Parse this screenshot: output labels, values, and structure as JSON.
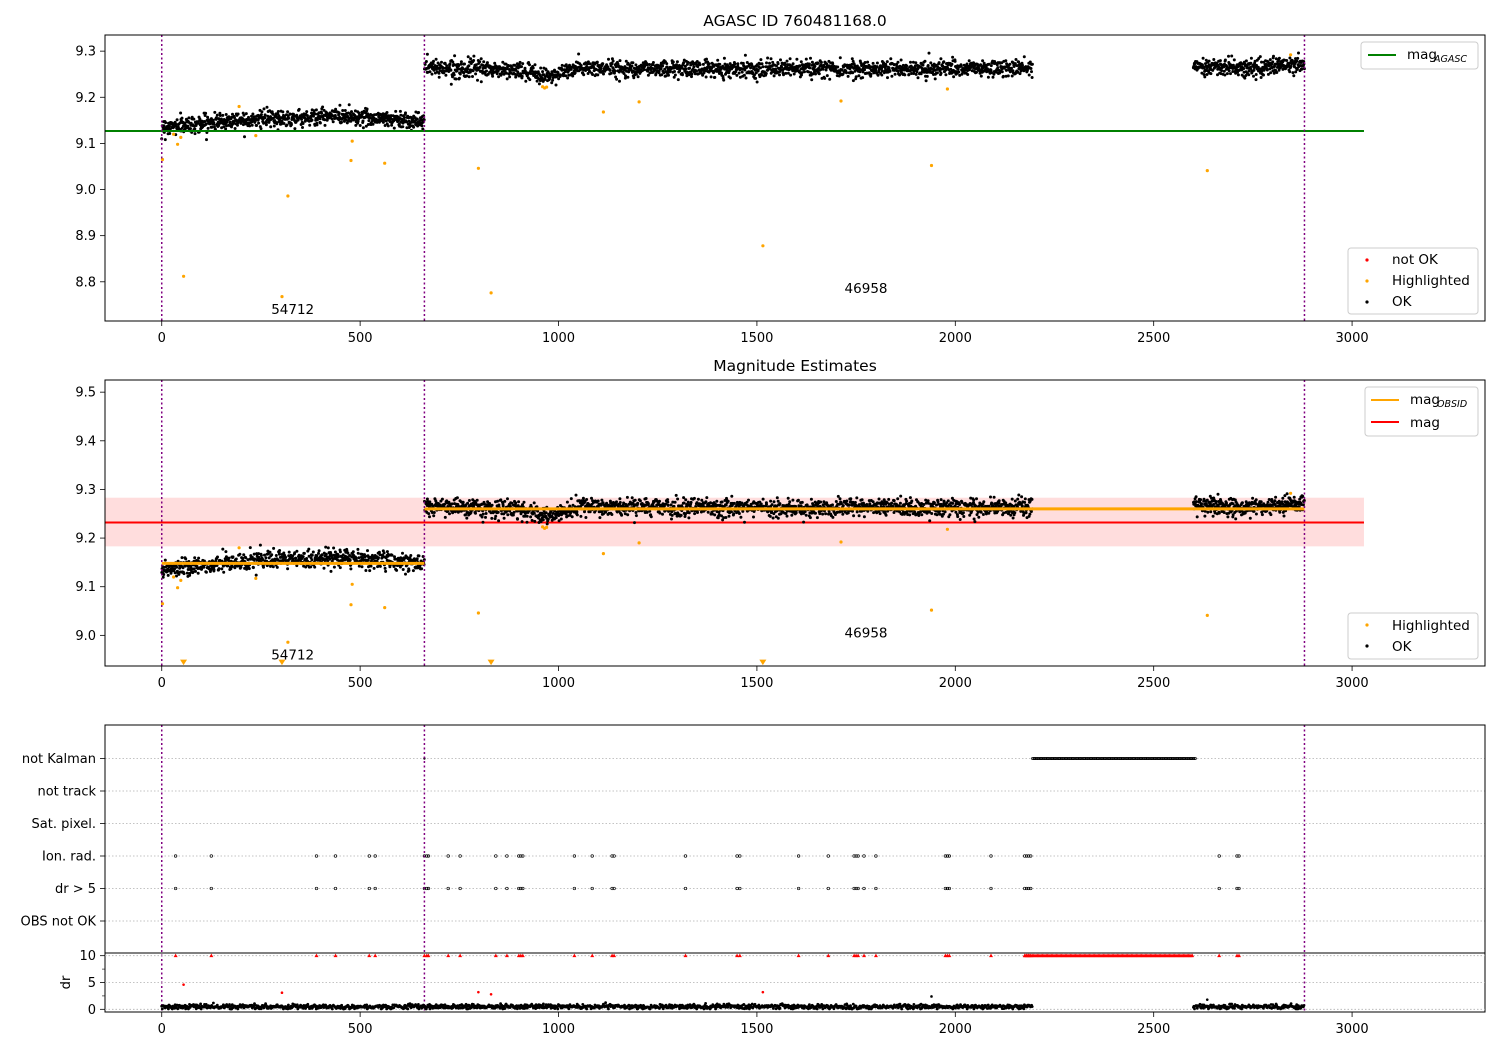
{
  "chart_data": [
    {
      "type": "scatter",
      "title": "AGASC ID 760481168.0",
      "xlim": [
        -143,
        3335
      ],
      "ylim": [
        8.715,
        9.335
      ],
      "xticks": [
        0,
        500,
        1000,
        1500,
        2000,
        2500,
        3000
      ],
      "xtick_labels": [
        "0",
        "500",
        "1000",
        "1500",
        "2000",
        "2500",
        "3000"
      ],
      "yticks": [
        8.8,
        8.9,
        9.0,
        9.1,
        9.2,
        9.3
      ],
      "ytick_labels": [
        "8.8",
        "8.9",
        "9.0",
        "9.1",
        "9.2",
        "9.3"
      ],
      "obs_boundaries": [
        0,
        662,
        2880
      ],
      "hlines": [
        {
          "name": "mag",
          "subscript": "AGASC",
          "y": 9.127,
          "x": [
            -143,
            3030
          ],
          "color": "#008000"
        }
      ],
      "series": [
        {
          "name": "OK",
          "color": "#000000",
          "segments": [
            {
              "x": [
                0,
                662
              ],
              "levels": [
                [
                  0,
                  9.135
                ],
                [
                  200,
                  9.152
                ],
                [
                  350,
                  9.155
                ],
                [
                  450,
                  9.16
                ],
                [
                  662,
                  9.148
                ]
              ],
              "noise": 0.009,
              "count": 760
            },
            {
              "x": [
                662,
                2195
              ],
              "levels": [
                [
                  662,
                  9.265
                ],
                [
                  900,
                  9.258
                ],
                [
                  970,
                  9.245
                ],
                [
                  1050,
                  9.263
                ],
                [
                  1500,
                  9.262
                ],
                [
                  2195,
                  9.262
                ]
              ],
              "noise": 0.009,
              "count": 1700
            },
            {
              "x": [
                2600,
                2880
              ],
              "levels": [
                [
                  2600,
                  9.27
                ],
                [
                  2720,
                  9.262
                ],
                [
                  2880,
                  9.272
                ]
              ],
              "noise": 0.009,
              "count": 340
            }
          ]
        },
        {
          "name": "Highlighted",
          "color": "#ffa500",
          "points": [
            [
              2,
              9.065
            ],
            [
              30,
              9.12
            ],
            [
              40,
              9.098
            ],
            [
              48,
              9.113
            ],
            [
              55,
              8.812
            ],
            [
              195,
              9.18
            ],
            [
              237,
              9.117
            ],
            [
              303,
              8.768
            ],
            [
              318,
              8.986
            ],
            [
              477,
              9.063
            ],
            [
              480,
              9.105
            ],
            [
              562,
              9.057
            ],
            [
              798,
              9.046
            ],
            [
              830,
              8.776
            ],
            [
              960,
              9.223
            ],
            [
              965,
              9.22
            ],
            [
              970,
              9.222
            ],
            [
              1113,
              9.168
            ],
            [
              1203,
              9.19
            ],
            [
              1515,
              8.878
            ],
            [
              1712,
              9.192
            ],
            [
              1940,
              9.052
            ],
            [
              1980,
              9.218
            ],
            [
              2635,
              9.041
            ],
            [
              2845,
              9.292
            ]
          ]
        },
        {
          "name": "not OK",
          "color": "#ff0000",
          "points": []
        }
      ],
      "annotations": [
        {
          "text": "54712",
          "x": 330,
          "y": 8.74
        },
        {
          "text": "46958",
          "x": 1775,
          "y": 8.785
        }
      ],
      "legends": [
        {
          "position": "upper right",
          "entries": [
            {
              "label": "mag",
              "subscript": "AGASC",
              "kind": "line",
              "color": "#008000"
            }
          ]
        },
        {
          "position": "lower right",
          "entries": [
            {
              "label": "not OK",
              "kind": "point",
              "color": "#ff0000"
            },
            {
              "label": "Highlighted",
              "kind": "point",
              "color": "#ffa500"
            },
            {
              "label": "OK",
              "kind": "point",
              "color": "#000000"
            }
          ]
        }
      ]
    },
    {
      "type": "scatter",
      "title": "Magnitude Estimates",
      "xlim": [
        -143,
        3335
      ],
      "ylim": [
        8.937,
        9.525
      ],
      "xticks": [
        0,
        500,
        1000,
        1500,
        2000,
        2500,
        3000
      ],
      "xtick_labels": [
        "0",
        "500",
        "1000",
        "1500",
        "2000",
        "2500",
        "3000"
      ],
      "yticks": [
        9.0,
        9.1,
        9.2,
        9.3,
        9.4,
        9.5
      ],
      "ytick_labels": [
        "9.0",
        "9.1",
        "9.2",
        "9.3",
        "9.4",
        "9.5"
      ],
      "obs_boundaries": [
        0,
        662,
        2880
      ],
      "band": {
        "y": [
          9.183,
          9.283
        ],
        "x": [
          -143,
          3030
        ],
        "color": "#ffdddd"
      },
      "hlines": [
        {
          "name": "mag",
          "y": 9.232,
          "x": [
            -143,
            3030
          ],
          "color": "#ff0000"
        },
        {
          "name": "mag",
          "subscript": "OBSID",
          "y": 9.148,
          "x": [
            0,
            662
          ],
          "color": "#ffa500"
        },
        {
          "name": "mag",
          "subscript": "OBSID",
          "y": 9.26,
          "x": [
            662,
            2880
          ],
          "color": "#ffa500"
        }
      ],
      "series": [
        {
          "name": "OK",
          "color": "#000000",
          "segments": [
            {
              "x": [
                0,
                662
              ],
              "levels": [
                [
                  0,
                  9.135
                ],
                [
                  200,
                  9.152
                ],
                [
                  350,
                  9.155
                ],
                [
                  450,
                  9.16
                ],
                [
                  662,
                  9.148
                ]
              ],
              "noise": 0.009,
              "count": 760
            },
            {
              "x": [
                662,
                2195
              ],
              "levels": [
                [
                  662,
                  9.265
                ],
                [
                  900,
                  9.258
                ],
                [
                  970,
                  9.245
                ],
                [
                  1050,
                  9.263
                ],
                [
                  1500,
                  9.262
                ],
                [
                  2195,
                  9.262
                ]
              ],
              "noise": 0.009,
              "count": 1700
            },
            {
              "x": [
                2600,
                2880
              ],
              "levels": [
                [
                  2600,
                  9.27
                ],
                [
                  2720,
                  9.262
                ],
                [
                  2880,
                  9.272
                ]
              ],
              "noise": 0.009,
              "count": 340
            }
          ]
        },
        {
          "name": "Highlighted",
          "color": "#ffa500",
          "points": [
            [
              2,
              9.065
            ],
            [
              30,
              9.12
            ],
            [
              40,
              9.098
            ],
            [
              48,
              9.113
            ],
            [
              195,
              9.18
            ],
            [
              237,
              9.117
            ],
            [
              318,
              8.986
            ],
            [
              477,
              9.063
            ],
            [
              480,
              9.105
            ],
            [
              562,
              9.057
            ],
            [
              798,
              9.046
            ],
            [
              960,
              9.223
            ],
            [
              965,
              9.22
            ],
            [
              970,
              9.222
            ],
            [
              1113,
              9.168
            ],
            [
              1203,
              9.19
            ],
            [
              1712,
              9.192
            ],
            [
              1940,
              9.052
            ],
            [
              1980,
              9.218
            ],
            [
              2635,
              9.041
            ],
            [
              2845,
              9.292
            ]
          ]
        },
        {
          "name": "below range",
          "color": "#ffa500",
          "marker": "triangle-down",
          "points": [
            [
              55,
              8.945
            ],
            [
              303,
              8.945
            ],
            [
              830,
              8.945
            ],
            [
              1515,
              8.945
            ]
          ]
        }
      ],
      "annotations": [
        {
          "text": "54712",
          "x": 330,
          "y": 8.96
        },
        {
          "text": "46958",
          "x": 1775,
          "y": 9.005
        }
      ],
      "legends": [
        {
          "position": "upper right",
          "entries": [
            {
              "label": "mag",
              "subscript": "OBSID",
              "kind": "line",
              "color": "#ffa500"
            },
            {
              "label": "mag",
              "kind": "line",
              "color": "#ff0000"
            }
          ]
        },
        {
          "position": "lower right",
          "entries": [
            {
              "label": "Highlighted",
              "kind": "point",
              "color": "#ffa500"
            },
            {
              "label": "OK",
              "kind": "point",
              "color": "#000000"
            }
          ]
        }
      ]
    },
    {
      "type": "scatter",
      "title": "",
      "xlim": [
        -143,
        3335
      ],
      "xticks": [
        0,
        500,
        1000,
        1500,
        2000,
        2500,
        3000
      ],
      "xtick_labels": [
        "0",
        "500",
        "1000",
        "1500",
        "2000",
        "2500",
        "3000"
      ],
      "obs_boundaries": [
        0,
        662,
        2880
      ],
      "flag_rows": [
        "not Kalman",
        "not track",
        "Sat. pixel.",
        "Ion. rad.",
        "dr > 5",
        "OBS not OK"
      ],
      "flag_points": {
        "not Kalman": [
          [
            662,
            662
          ],
          [
            2195,
            2605
          ]
        ],
        "Ion. rad.": [
          35,
          125,
          390,
          438,
          523,
          538,
          662,
          668,
          672,
          722,
          752,
          842,
          870,
          900,
          905,
          910,
          1040,
          1085,
          1135,
          1140,
          1320,
          1450,
          1457,
          1605,
          1680,
          1745,
          1750,
          1755,
          1770,
          1800,
          1975,
          1980,
          1985,
          2090,
          2175,
          2180,
          2185,
          2190,
          2665,
          2710,
          2715
        ],
        "dr > 5": [
          35,
          125,
          390,
          438,
          523,
          538,
          662,
          668,
          672,
          722,
          752,
          842,
          870,
          900,
          905,
          910,
          1040,
          1085,
          1135,
          1140,
          1320,
          1450,
          1457,
          1605,
          1680,
          1745,
          1750,
          1755,
          1770,
          1800,
          1975,
          1980,
          1985,
          2090,
          2175,
          2180,
          2185,
          2190,
          2665,
          2710,
          2715
        ]
      },
      "dr": {
        "ylabel": "dr",
        "ylim": [
          -0.5,
          10.5
        ],
        "yticks": [
          0,
          5,
          10
        ],
        "ytick_labels": [
          "0",
          "5",
          "10"
        ],
        "ok_segments": [
          [
            0,
            2195
          ],
          [
            2600,
            2880
          ]
        ],
        "ok_level": 0.5,
        "capped_value": 10,
        "capped_x": [
          35,
          125,
          390,
          438,
          523,
          538,
          662,
          668,
          672,
          722,
          752,
          842,
          870,
          900,
          905,
          910,
          1040,
          1085,
          1135,
          1140,
          1320,
          1450,
          1457,
          1605,
          1680,
          1745,
          1750,
          1755,
          1770,
          1800,
          1975,
          1980,
          1985,
          2090,
          2175,
          2180,
          2185,
          2190,
          2665,
          2710,
          2715
        ],
        "capped_range": [
          2175,
          2600
        ],
        "other_red": [
          [
            55,
            4.6
          ],
          [
            303,
            3.1
          ],
          [
            798,
            3.2
          ],
          [
            830,
            2.8
          ],
          [
            1515,
            3.2
          ]
        ],
        "other_black": [
          [
            1940,
            2.4
          ],
          [
            2635,
            1.8
          ]
        ]
      }
    }
  ]
}
